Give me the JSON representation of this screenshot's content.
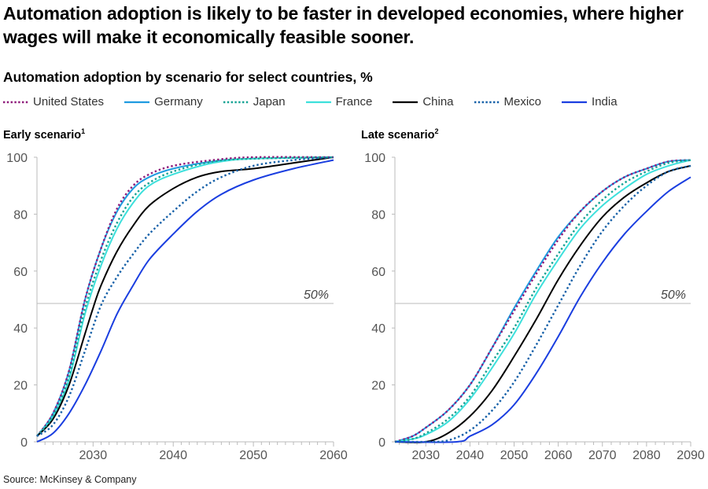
{
  "title": "Automation adoption is likely to be faster in developed economies, where higher wages will make it economically feasible sooner.",
  "subtitle": "Automation adoption by scenario for select countries, %",
  "source": "Source: McKinsey & Company",
  "legend": [
    {
      "name": "United States",
      "color": "#8e1a7a",
      "style": "dotted"
    },
    {
      "name": "Germany",
      "color": "#1f9be0",
      "style": "solid"
    },
    {
      "name": "Japan",
      "color": "#16a394",
      "style": "dotted"
    },
    {
      "name": "France",
      "color": "#3de0dc",
      "style": "solid"
    },
    {
      "name": "China",
      "color": "#000000",
      "style": "solid"
    },
    {
      "name": "Mexico",
      "color": "#1560a8",
      "style": "dotted"
    },
    {
      "name": "India",
      "color": "#1a3ee0",
      "style": "solid"
    }
  ],
  "chart_data": [
    {
      "type": "line",
      "title": "Early scenario",
      "footnote": "1",
      "xlim": [
        2023,
        2060
      ],
      "ylim": [
        0,
        100
      ],
      "xticks": [
        2030,
        2040,
        2050,
        2060
      ],
      "yticks": [
        0,
        20,
        40,
        60,
        80,
        100
      ],
      "reference_line": {
        "y": 50,
        "label": "50%"
      },
      "grid": false,
      "series": [
        {
          "name": "United States",
          "x": [
            2023,
            2025,
            2027,
            2029,
            2031,
            2033,
            2035,
            2037,
            2040,
            2045,
            2050,
            2060
          ],
          "y": [
            2,
            10,
            25,
            50,
            68,
            82,
            90,
            94,
            97,
            99,
            100,
            100
          ]
        },
        {
          "name": "Germany",
          "x": [
            2023,
            2025,
            2027,
            2029,
            2031,
            2033,
            2035,
            2037,
            2040,
            2045,
            2050,
            2060
          ],
          "y": [
            2,
            10,
            25,
            50,
            68,
            81,
            89,
            93,
            96,
            98.5,
            99.5,
            100
          ]
        },
        {
          "name": "Japan",
          "x": [
            2023,
            2025,
            2027,
            2029,
            2031,
            2033,
            2035,
            2037,
            2040,
            2045,
            2050,
            2060
          ],
          "y": [
            2,
            9,
            23,
            47,
            64,
            77,
            86,
            91,
            95,
            98.5,
            99.5,
            100
          ]
        },
        {
          "name": "France",
          "x": [
            2023,
            2025,
            2027,
            2029,
            2031,
            2033,
            2035,
            2037,
            2040,
            2045,
            2050,
            2060
          ],
          "y": [
            2,
            9,
            22,
            45,
            62,
            75,
            84,
            90,
            94,
            98,
            99.5,
            100
          ]
        },
        {
          "name": "China",
          "x": [
            2023,
            2025,
            2027,
            2029,
            2030,
            2031,
            2033,
            2035,
            2037,
            2040,
            2043,
            2046,
            2050,
            2055,
            2060
          ],
          "y": [
            2,
            8,
            20,
            38,
            47,
            55,
            67,
            76,
            83,
            89,
            93,
            95,
            96,
            98,
            100
          ]
        },
        {
          "name": "Mexico",
          "x": [
            2023,
            2025,
            2027,
            2029,
            2031,
            2033,
            2035,
            2037,
            2040,
            2043,
            2046,
            2050,
            2055,
            2060
          ],
          "y": [
            2,
            6,
            16,
            32,
            48,
            58,
            66,
            73,
            81,
            88,
            93,
            97,
            99,
            100
          ]
        },
        {
          "name": "India",
          "x": [
            2023,
            2025,
            2027,
            2029,
            2031,
            2033,
            2035,
            2037,
            2040,
            2043,
            2046,
            2050,
            2055,
            2060
          ],
          "y": [
            0,
            3,
            10,
            20,
            32,
            45,
            55,
            64,
            73,
            81,
            87,
            92,
            96,
            99
          ]
        }
      ]
    },
    {
      "type": "line",
      "title": "Late scenario",
      "footnote": "2",
      "xlim": [
        2023,
        2090
      ],
      "ylim": [
        0,
        100
      ],
      "xticks": [
        2030,
        2040,
        2050,
        2060,
        2070,
        2080,
        2090
      ],
      "yticks": [
        0,
        20,
        40,
        60,
        80,
        100
      ],
      "reference_line": {
        "y": 50,
        "label": "50%"
      },
      "grid": false,
      "series": [
        {
          "name": "United States",
          "x": [
            2023,
            2027,
            2030,
            2035,
            2040,
            2045,
            2050,
            2055,
            2060,
            2065,
            2070,
            2075,
            2080,
            2085,
            2090
          ],
          "y": [
            0,
            2,
            5,
            11,
            20,
            33,
            46,
            59,
            71,
            81,
            88,
            93,
            96,
            98.5,
            99
          ]
        },
        {
          "name": "Germany",
          "x": [
            2023,
            2027,
            2030,
            2035,
            2040,
            2045,
            2050,
            2055,
            2060,
            2065,
            2070,
            2075,
            2080,
            2085,
            2090
          ],
          "y": [
            0,
            2,
            5,
            11,
            20,
            33,
            47,
            60,
            72,
            81,
            88,
            93,
            96,
            98.5,
            99
          ]
        },
        {
          "name": "Japan",
          "x": [
            2023,
            2027,
            2030,
            2035,
            2040,
            2045,
            2050,
            2055,
            2060,
            2065,
            2070,
            2075,
            2080,
            2085,
            2090
          ],
          "y": [
            0,
            1,
            3,
            8,
            16,
            28,
            40,
            54,
            66,
            77,
            85,
            91,
            95,
            98,
            99
          ]
        },
        {
          "name": "France",
          "x": [
            2023,
            2027,
            2030,
            2035,
            2040,
            2045,
            2050,
            2055,
            2060,
            2065,
            2070,
            2075,
            2080,
            2085,
            2090
          ],
          "y": [
            0,
            1,
            2.5,
            7,
            15,
            26,
            38,
            52,
            64,
            75,
            83,
            89,
            94,
            97,
            99
          ]
        },
        {
          "name": "China",
          "x": [
            2023,
            2030,
            2035,
            2040,
            2045,
            2050,
            2055,
            2060,
            2065,
            2070,
            2075,
            2080,
            2085,
            2090
          ],
          "y": [
            0,
            0,
            3,
            9,
            18,
            30,
            43,
            57,
            69,
            79,
            86,
            91,
            95,
            97
          ]
        },
        {
          "name": "Mexico",
          "x": [
            2023,
            2030,
            2035,
            2040,
            2045,
            2050,
            2055,
            2060,
            2065,
            2070,
            2075,
            2080,
            2085,
            2090
          ],
          "y": [
            0,
            0,
            0.5,
            4,
            11,
            21,
            34,
            48,
            62,
            74,
            83,
            90,
            95,
            97
          ]
        },
        {
          "name": "India",
          "x": [
            2023,
            2037,
            2040,
            2045,
            2050,
            2055,
            2060,
            2065,
            2070,
            2075,
            2080,
            2085,
            2090
          ],
          "y": [
            0,
            0,
            2,
            6,
            13,
            24,
            37,
            51,
            63,
            73,
            81,
            88,
            93
          ]
        }
      ]
    }
  ]
}
